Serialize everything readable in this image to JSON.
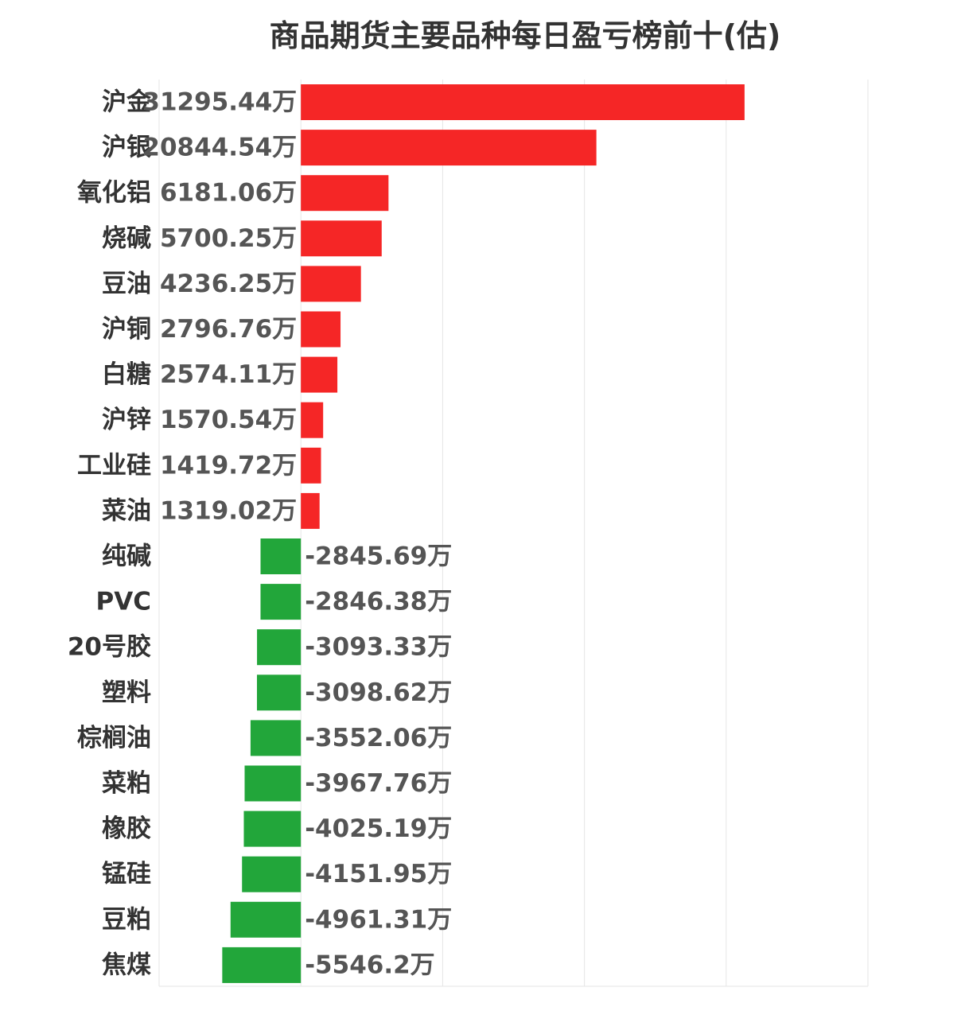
{
  "chart_data": {
    "type": "bar",
    "orientation": "horizontal",
    "title": "商品期货主要品种每日盈亏榜前十(估)",
    "unit": "万",
    "xlim": [
      -10000,
      40000
    ],
    "grid": true,
    "colors": {
      "positive": "#f52626",
      "negative": "#22a63a"
    },
    "categories": [
      "沪金",
      "沪银",
      "氧化铝",
      "烧碱",
      "豆油",
      "沪铜",
      "白糖",
      "沪锌",
      "工业硅",
      "菜油",
      "纯碱",
      "PVC",
      "20号胶",
      "塑料",
      "棕榈油",
      "菜粕",
      "橡胶",
      "锰硅",
      "豆粕",
      "焦煤"
    ],
    "values": [
      31295.44,
      20844.54,
      6181.06,
      5700.25,
      4236.25,
      2796.76,
      2574.11,
      1570.54,
      1419.72,
      1319.02,
      -2845.69,
      -2846.38,
      -3093.33,
      -3098.62,
      -3552.06,
      -3967.76,
      -4025.19,
      -4151.95,
      -4961.31,
      -5546.2
    ],
    "value_labels": [
      "31295.44万",
      "20844.54万",
      "6181.06万",
      "5700.25万",
      "4236.25万",
      "2796.76万",
      "2574.11万",
      "1570.54万",
      "1419.72万",
      "1319.02万",
      "-2845.69万",
      "-2846.38万",
      "-3093.33万",
      "-3098.62万",
      "-3552.06万",
      "-3967.76万",
      "-4025.19万",
      "-4151.95万",
      "-4961.31万",
      "-5546.2万"
    ]
  }
}
